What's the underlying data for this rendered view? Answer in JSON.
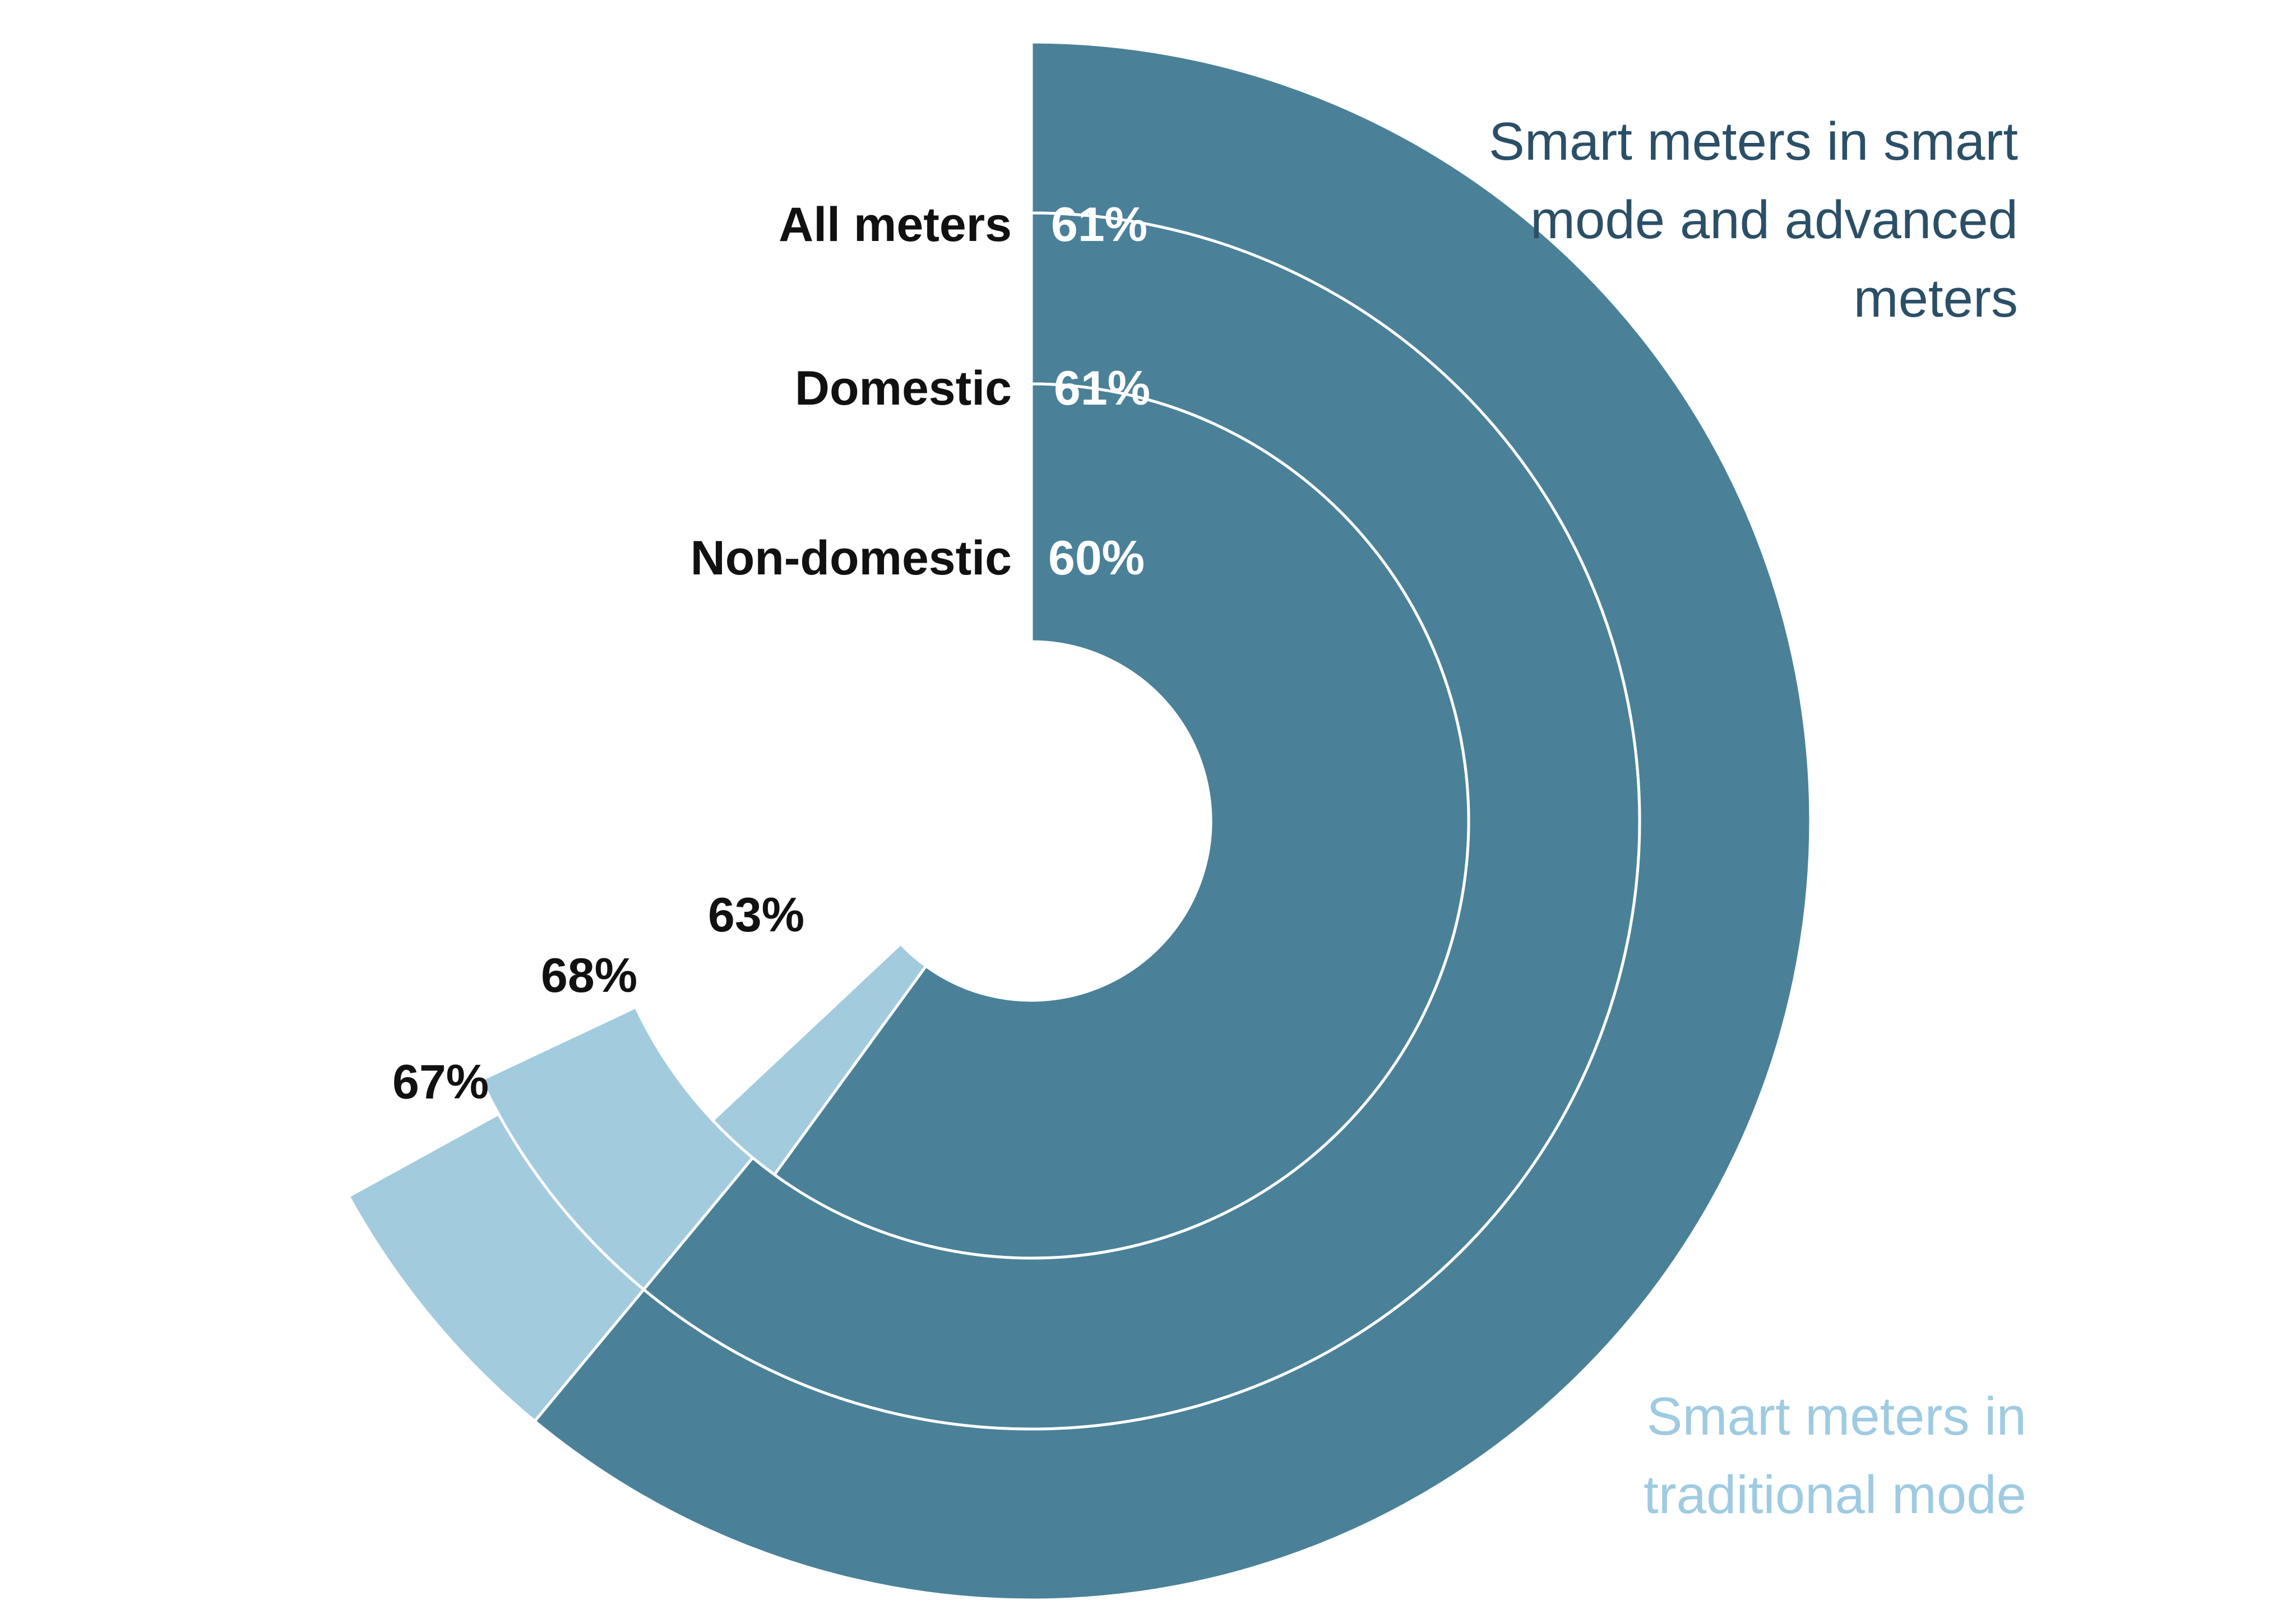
{
  "chart_data": {
    "type": "radial-bar",
    "categories": [
      "All meters",
      "Domestic",
      "Non-domestic"
    ],
    "series": [
      {
        "name": "Smart meters in smart mode and advanced meters",
        "values": [
          61,
          61,
          60
        ],
        "labels": [
          "61%",
          "61%",
          "60%"
        ],
        "color": "#4a8198"
      },
      {
        "name": "Smart meters in traditional mode",
        "values": [
          6,
          7,
          3
        ],
        "total_labels": [
          "67%",
          "68%",
          "63%"
        ],
        "color": "#a2cbde"
      }
    ],
    "legend": {
      "smart_mode_lines": [
        "Smart meters in smart",
        "mode and advanced",
        "meters"
      ],
      "traditional_lines": [
        "Smart meters in",
        "traditional mode"
      ],
      "smart_mode_color": "#2b4f66",
      "traditional_color": "#9ecbe2"
    },
    "scale_max": 100
  }
}
